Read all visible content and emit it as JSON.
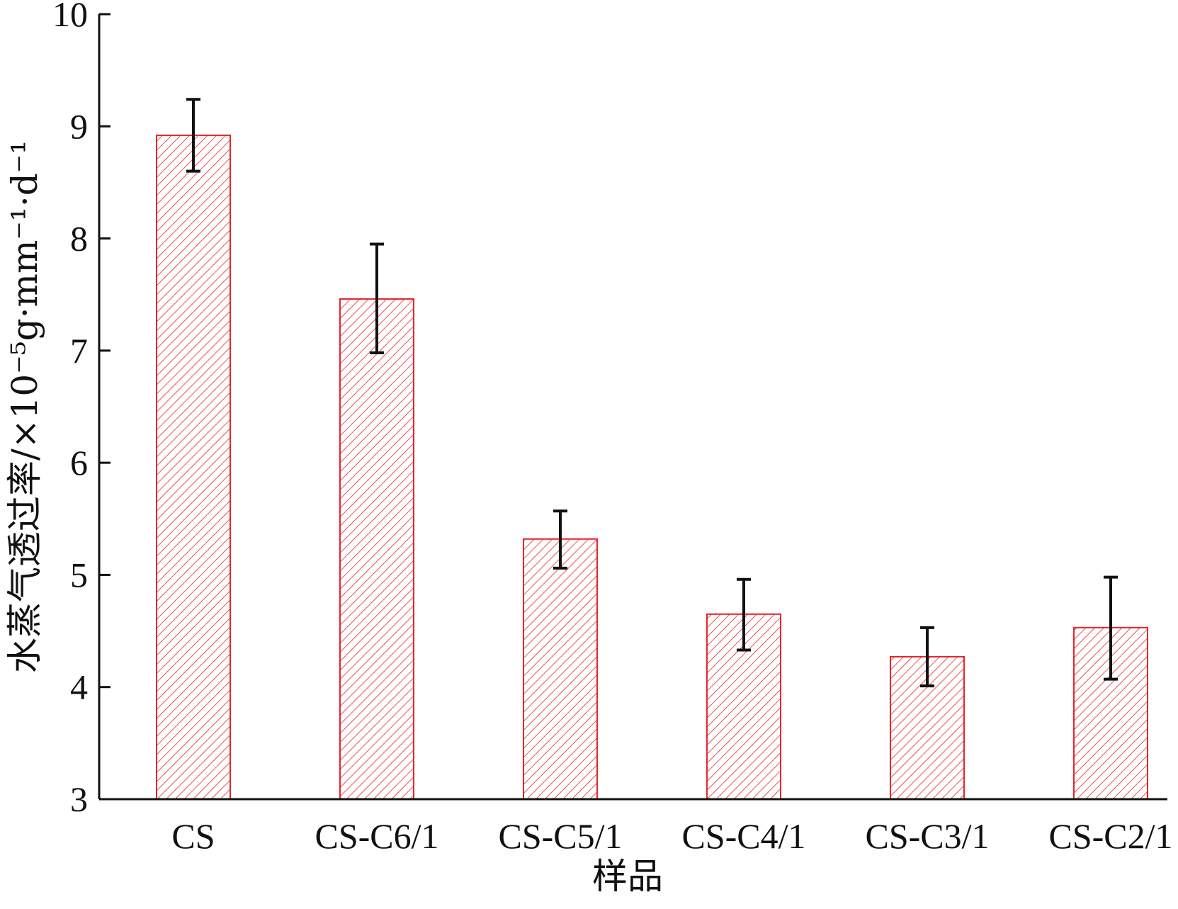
{
  "chart_data": {
    "type": "bar",
    "title": "",
    "xlabel": "样品",
    "ylabel": "水蒸气透过率/×10⁻⁵g·mm⁻¹·d⁻¹",
    "categories": [
      "CS",
      "CS-C6/1",
      "CS-C5/1",
      "CS-C4/1",
      "CS-C3/1",
      "CS-C2/1"
    ],
    "values": [
      8.92,
      7.46,
      5.32,
      4.65,
      4.27,
      4.53
    ],
    "error_upper": [
      9.24,
      7.95,
      5.57,
      4.96,
      4.53,
      4.98
    ],
    "error_lower": [
      8.6,
      6.98,
      5.06,
      4.33,
      4.01,
      4.07
    ],
    "yticks": [
      "3",
      "4",
      "5",
      "6",
      "7",
      "8",
      "9",
      "10"
    ],
    "ylim": [
      3,
      10
    ],
    "bar_color": "#e8242a",
    "bar_pattern": "diagonal-hatch",
    "grid": false
  }
}
